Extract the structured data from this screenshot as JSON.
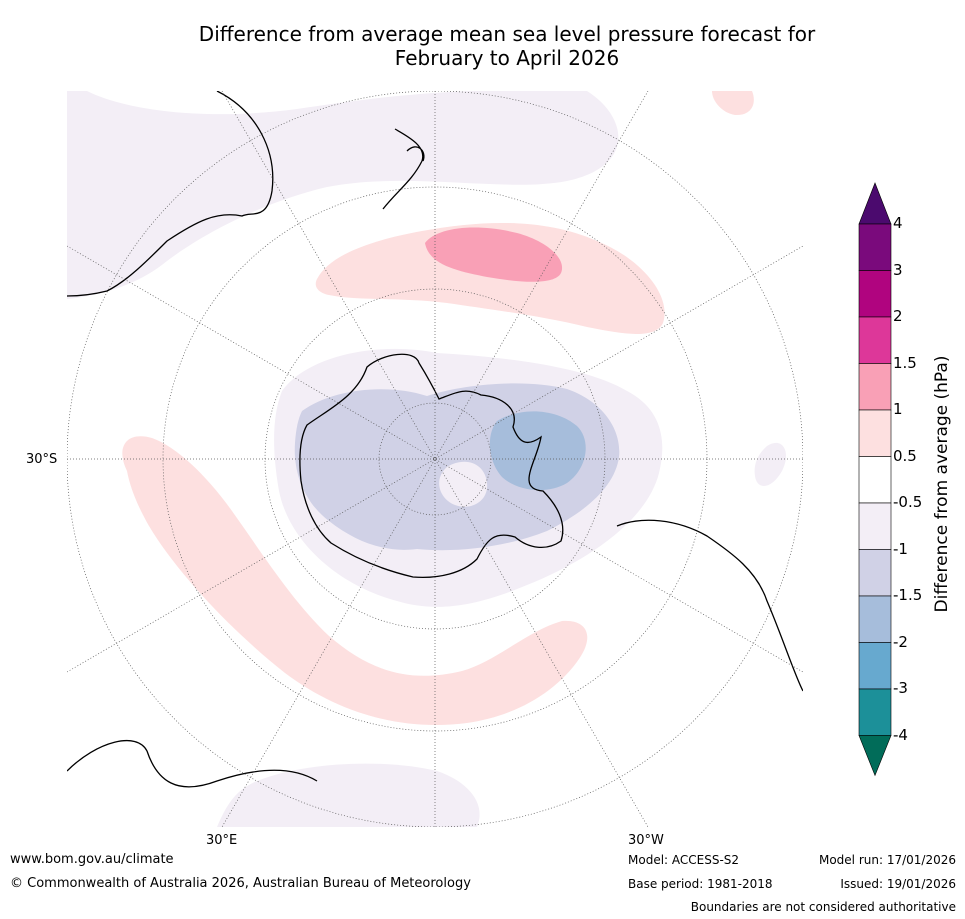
{
  "title": {
    "line1": "Difference from average mean sea level pressure forecast for",
    "line2": "February to April 2026"
  },
  "map": {
    "projection": "south polar stereographic",
    "labels": {
      "lat": "30°S",
      "lon_east": "30°E",
      "lon_west": "30°W"
    }
  },
  "colorbar": {
    "title": "Difference from average (hPa)",
    "ticks": [
      "4",
      "3",
      "2",
      "1.5",
      "1",
      "0.5",
      "-0.5",
      "-1",
      "-1.5",
      "-2",
      "-3",
      "-4"
    ],
    "colors": {
      "over": "#4b0a6e",
      "c_3_4": "#7a0a7c",
      "c_2_3": "#b0047f",
      "c_1_5_2": "#dd3799",
      "c_1_1_5": "#f9a0b6",
      "c_0_5_1": "#fde0e0",
      "c_neutral": "#ffffff",
      "c_m1_m0_5": "#f3eef6",
      "c_m1_5_m1": "#d0d1e6",
      "c_m2_m1_5": "#a6bddb",
      "c_m3_m2": "#67a9cf",
      "c_m4_m3": "#1c9099",
      "under": "#016c59"
    }
  },
  "footer": {
    "website": "www.bom.gov.au/climate",
    "copyright": "© Commonwealth of Australia 2026, Australian Bureau of Meteorology",
    "model": "Model: ACCESS-S2",
    "base_period": "Base period: 1981-2018",
    "model_run": "Model run: 17/01/2026",
    "issued": "Issued: 19/01/2026",
    "disclaimer": "Boundaries are not considered authoritative"
  }
}
